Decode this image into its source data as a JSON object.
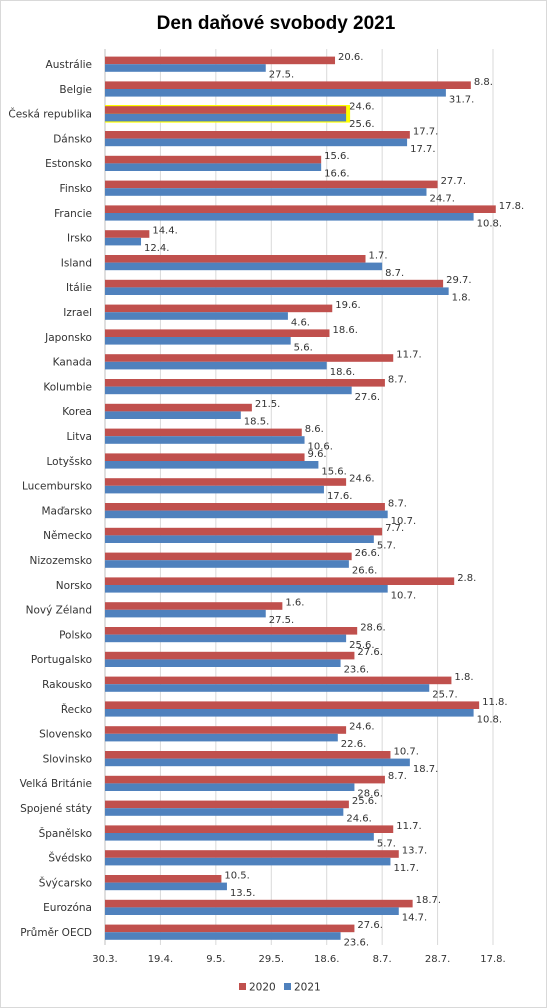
{
  "chart_data": {
    "type": "bar",
    "orientation": "horizontal",
    "title": "Den daňové svobody 2021",
    "xlabel": "",
    "ylabel": "",
    "x_unit": "day of year",
    "xlim": [
      89,
      229
    ],
    "x_ticks": [
      {
        "label": "30.3.",
        "value": 89
      },
      {
        "label": "19.4.",
        "value": 109
      },
      {
        "label": "9.5.",
        "value": 129
      },
      {
        "label": "29.5.",
        "value": 149
      },
      {
        "label": "18.6.",
        "value": 169
      },
      {
        "label": "8.7.",
        "value": 189
      },
      {
        "label": "28.7.",
        "value": 209
      },
      {
        "label": "17.8.",
        "value": 229
      }
    ],
    "grid": true,
    "legend": "bottom",
    "highlight_category": "Česká republika",
    "highlight_color": "#ffff00",
    "categories": [
      "Austrálie",
      "Belgie",
      "Česká republika",
      "Dánsko",
      "Estonsko",
      "Finsko",
      "Francie",
      "Irsko",
      "Island",
      "Itálie",
      "Izrael",
      "Japonsko",
      "Kanada",
      "Kolumbie",
      "Korea",
      "Litva",
      "Lotyšsko",
      "Lucembursko",
      "Maďarsko",
      "Německo",
      "Nizozemsko",
      "Norsko",
      "Nový Zéland",
      "Polsko",
      "Portugalsko",
      "Rakousko",
      "Řecko",
      "Slovensko",
      "Slovinsko",
      "Velká Británie",
      "Spojené státy",
      "Španělsko",
      "Švédsko",
      "Švýcarsko",
      "Eurozóna",
      "Průměr OECD"
    ],
    "series": [
      {
        "name": "2020",
        "color": "#c0504d",
        "labels": [
          "20.6.",
          "8.8.",
          "24.6.",
          "17.7.",
          "15.6.",
          "27.7.",
          "17.8.",
          "14.4.",
          "1.7.",
          "29.7.",
          "19.6.",
          "18.6.",
          "11.7.",
          "8.7.",
          "21.5.",
          "8.6.",
          "9.6.",
          "24.6.",
          "8.7.",
          "7.7.",
          "26.6.",
          "2.8.",
          "1.6.",
          "28.6.",
          "27.6.",
          "1.8.",
          "11.8.",
          "24.6.",
          "10.7.",
          "8.7.",
          "25.6.",
          "11.7.",
          "13.7.",
          "10.5.",
          "18.7.",
          "27.6."
        ],
        "values": [
          172,
          221,
          176,
          199,
          167,
          209,
          230,
          105,
          183,
          211,
          171,
          170,
          193,
          190,
          142,
          160,
          161,
          176,
          190,
          189,
          178,
          215,
          153,
          180,
          179,
          214,
          224,
          176,
          192,
          190,
          177,
          193,
          195,
          131,
          200,
          179
        ]
      },
      {
        "name": "2021",
        "color": "#4f81bd",
        "labels": [
          "27.5.",
          "31.7.",
          "25.6.",
          "17.7.",
          "16.6.",
          "24.7.",
          "10.8.",
          "12.4.",
          "8.7.",
          "1.8.",
          "4.6.",
          "5.6.",
          "18.6.",
          "27.6.",
          "18.5.",
          "10.6.",
          "15.6.",
          "17.6.",
          "10.7.",
          "5.7.",
          "26.6.",
          "10.7.",
          "27.5.",
          "25.6.",
          "23.6.",
          "25.7.",
          "10.8.",
          "22.6.",
          "18.7.",
          "28.6.",
          "24.6.",
          "5.7.",
          "11.7.",
          "13.5.",
          "14.7.",
          "23.6."
        ],
        "values": [
          147,
          212,
          176,
          198,
          167,
          205,
          222,
          102,
          189,
          213,
          155,
          156,
          169,
          178,
          138,
          161,
          166,
          168,
          191,
          186,
          177,
          191,
          147,
          176,
          174,
          206,
          222,
          173,
          199,
          179,
          175,
          186,
          192,
          133,
          195,
          174
        ]
      }
    ]
  }
}
